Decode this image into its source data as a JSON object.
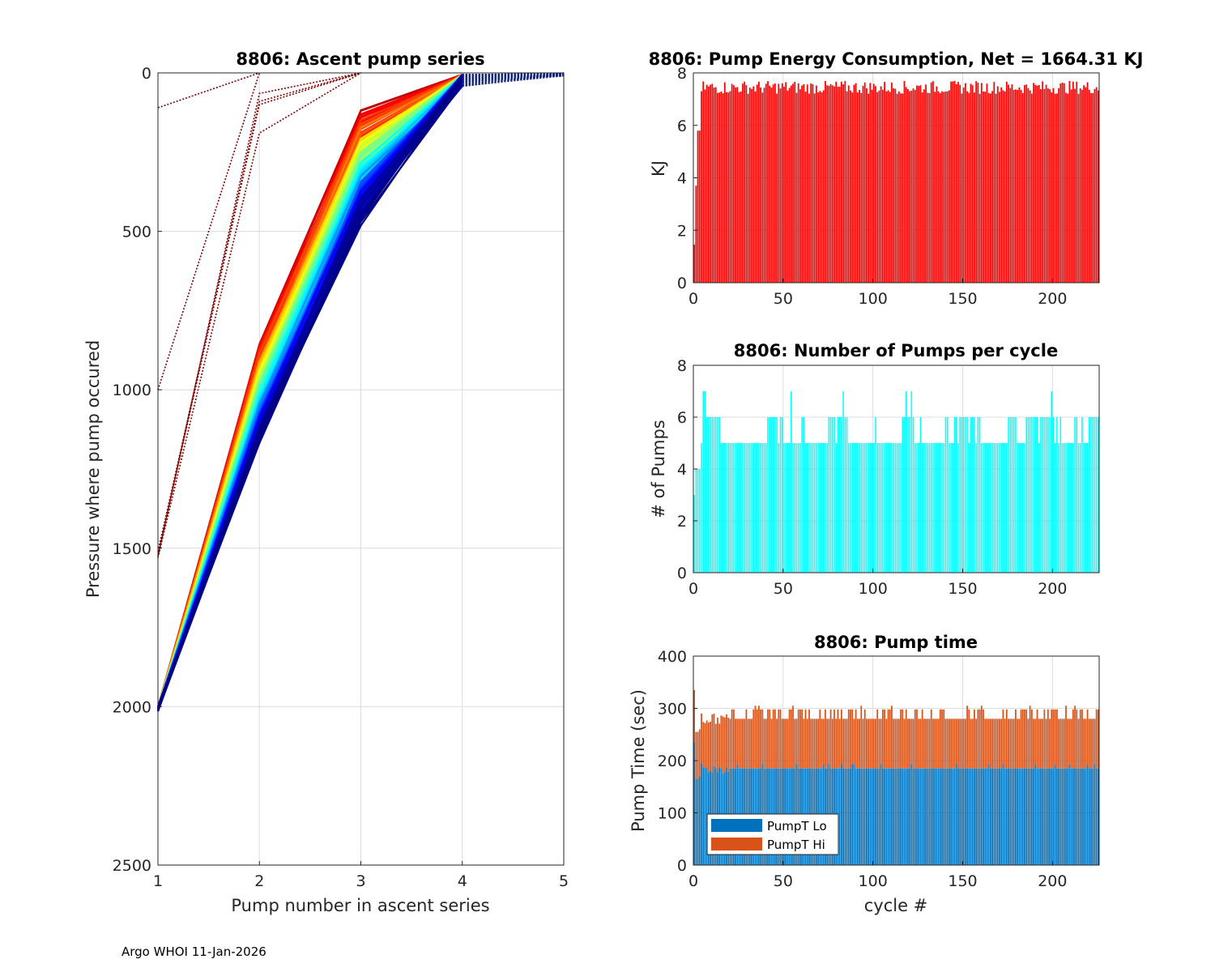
{
  "footer": "Argo WHOI 11-Jan-2026",
  "chart_data": [
    {
      "id": "ascent",
      "type": "line",
      "title": "8806: Ascent pump series",
      "xlabel": "Pump number in ascent series",
      "ylabel": "Pressure where pump occured",
      "xlim": [
        1,
        5
      ],
      "ylim": [
        2500,
        0
      ],
      "y_reversed": true,
      "x_ticks": [
        "1",
        "2",
        "3",
        "4",
        "5"
      ],
      "y_ticks": [
        "0",
        "500",
        "1000",
        "1500",
        "2000",
        "2500"
      ],
      "grid": true,
      "colormap": "jet (early cycles dark red, later cycles dark blue)",
      "series_examples": [
        {
          "name": "early-dotted",
          "x": [
            1,
            2,
            3
          ],
          "y": [
            1520,
            100,
            0
          ]
        },
        {
          "name": "early-dotted-2",
          "x": [
            1,
            2
          ],
          "y": [
            1000,
            0
          ]
        },
        {
          "name": "early-dotted-3",
          "x": [
            1,
            2
          ],
          "y": [
            110,
            0
          ]
        },
        {
          "name": "deep-red",
          "x": [
            1,
            2,
            3,
            4,
            5
          ],
          "y": [
            2000,
            870,
            150,
            0,
            0
          ]
        },
        {
          "name": "deep-orange",
          "x": [
            1,
            2,
            3,
            4,
            5
          ],
          "y": [
            2000,
            950,
            230,
            10,
            0
          ]
        },
        {
          "name": "deep-yellow",
          "x": [
            1,
            2,
            3,
            4,
            5
          ],
          "y": [
            2000,
            980,
            270,
            15,
            0
          ]
        },
        {
          "name": "deep-blue",
          "x": [
            1,
            2,
            3,
            4,
            5
          ],
          "y": [
            2000,
            1050,
            350,
            30,
            0
          ]
        },
        {
          "name": "deep-darkblue",
          "x": [
            1,
            2,
            3,
            4,
            5
          ],
          "y": [
            2010,
            1150,
            450,
            50,
            0
          ]
        }
      ]
    },
    {
      "id": "energy",
      "type": "bar",
      "title": "8806: Pump Energy Consumption,  Net = 1664.31 KJ",
      "xlabel": "",
      "ylabel": "KJ",
      "xlim": [
        0,
        226
      ],
      "ylim": [
        0,
        8
      ],
      "x_ticks": [
        "0",
        "50",
        "100",
        "150",
        "200"
      ],
      "y_ticks": [
        "0",
        "2",
        "4",
        "6",
        "8"
      ],
      "color": "#ff0000",
      "n_cycles": 226,
      "first_values": [
        1.45,
        3.7,
        5.8,
        5.8,
        7.3
      ],
      "typical_range": [
        7.2,
        7.7
      ]
    },
    {
      "id": "pumps",
      "type": "bar",
      "title": "8806: Number of Pumps per cycle",
      "xlabel": "",
      "ylabel": "# of Pumps",
      "xlim": [
        0,
        226
      ],
      "ylim": [
        0,
        8
      ],
      "x_ticks": [
        "0",
        "50",
        "100",
        "150",
        "200"
      ],
      "y_ticks": [
        "0",
        "2",
        "4",
        "6",
        "8"
      ],
      "color": "#00ffff",
      "values_note": "mostly 5-6 pumps, peaks of 7 near cycles 6, 54, 83, 118, 199",
      "first_values": [
        3,
        4,
        4,
        4,
        5,
        7
      ]
    },
    {
      "id": "pumptime",
      "type": "bar",
      "stacked": true,
      "title": "8806: Pump time",
      "xlabel": "cycle #",
      "ylabel": "Pump Time (sec)",
      "xlim": [
        0,
        226
      ],
      "ylim": [
        0,
        400
      ],
      "x_ticks": [
        "0",
        "50",
        "100",
        "150",
        "200"
      ],
      "y_ticks": [
        "0",
        "100",
        "200",
        "300",
        "400"
      ],
      "legend_position": "bottom-left",
      "series": [
        {
          "name": "PumpT Lo",
          "color": "#0072bd",
          "typical": 185
        },
        {
          "name": "PumpT Hi",
          "color": "#d95319",
          "typical_total": 280
        }
      ],
      "first_totals": [
        335,
        255,
        255,
        260,
        290
      ]
    }
  ]
}
